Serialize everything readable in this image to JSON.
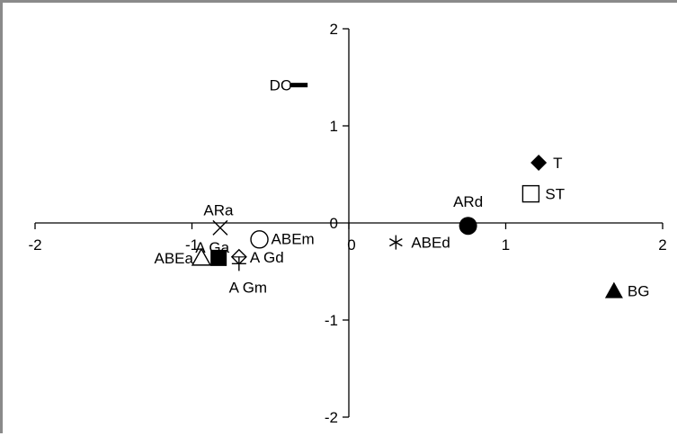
{
  "chart_data": {
    "type": "scatter",
    "title": "",
    "xlabel": "",
    "ylabel": "",
    "xlim": [
      -2,
      2
    ],
    "ylim": [
      -2,
      2
    ],
    "grid": false,
    "x_ticks": [
      -2,
      -1,
      0,
      1,
      2
    ],
    "y_ticks": [
      -2,
      -1,
      0,
      1,
      2
    ],
    "x_tick_labels": [
      "-2",
      "-1",
      "0",
      "1",
      "2"
    ],
    "y_tick_labels": [
      "-2",
      "-1",
      "0",
      "1",
      "2"
    ],
    "points": [
      {
        "label": "DC",
        "x": -0.32,
        "y": 1.42,
        "marker": "dash"
      },
      {
        "label": "T",
        "x": 1.21,
        "y": 0.62,
        "marker": "diamond-filled"
      },
      {
        "label": "ST",
        "x": 1.16,
        "y": 0.3,
        "marker": "square-open"
      },
      {
        "label": "ARd",
        "x": 0.76,
        "y": -0.03,
        "marker": "circle-filled"
      },
      {
        "label": "ABEd",
        "x": 0.3,
        "y": -0.2,
        "marker": "asterisk"
      },
      {
        "label": "BG",
        "x": 1.69,
        "y": -0.7,
        "marker": "triangle-filled"
      },
      {
        "label": "ARa",
        "x": -0.82,
        "y": -0.05,
        "marker": "x"
      },
      {
        "label": "ABEm",
        "x": -0.57,
        "y": -0.17,
        "marker": "circle-open"
      },
      {
        "label": "A Ga",
        "x": -0.87,
        "y": -0.25,
        "marker": "none"
      },
      {
        "label": "A Gd",
        "x": -0.7,
        "y": -0.35,
        "marker": "diamond-open-cross"
      },
      {
        "label": "A Gm",
        "x": -0.7,
        "y": -0.42,
        "marker": "plus"
      },
      {
        "label": "ABEa",
        "x": -0.94,
        "y": -0.36,
        "marker": "triangle-open"
      },
      {
        "label": "",
        "x": -0.83,
        "y": -0.36,
        "marker": "square-filled"
      }
    ]
  }
}
